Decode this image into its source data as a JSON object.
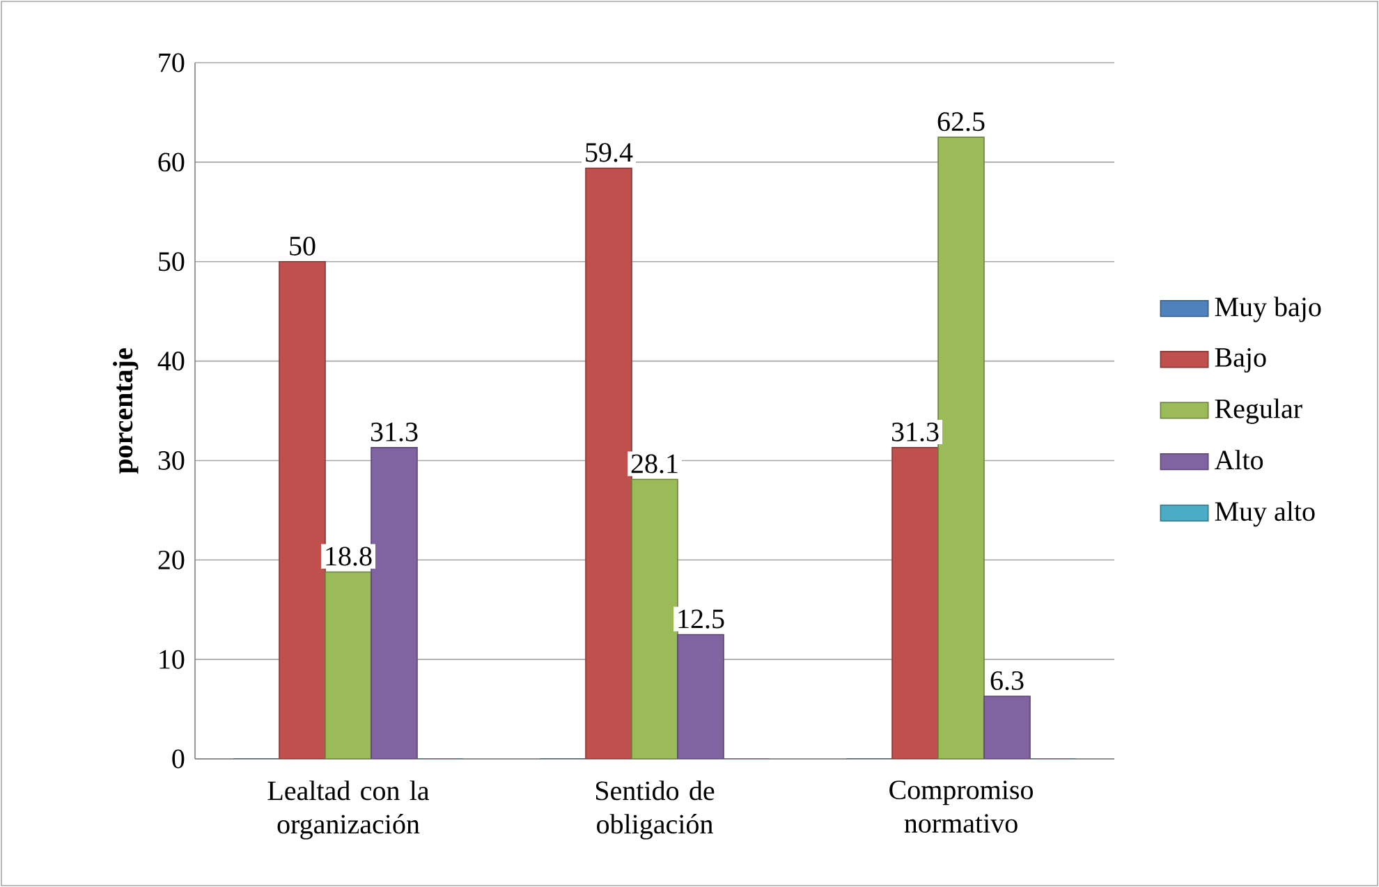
{
  "chart_data": {
    "type": "bar",
    "ylabel": "porcentaje",
    "categories": [
      "Lealtad  con  la organización",
      "Sentido de obligación",
      "Compromiso normativo"
    ],
    "series": [
      {
        "name": "Muy bajo",
        "color": "#4f81bd",
        "values": [
          0,
          0,
          0
        ],
        "value_labels": [
          null,
          null,
          null
        ]
      },
      {
        "name": "Bajo",
        "color": "#c0504d",
        "values": [
          50,
          59.4,
          31.3
        ],
        "value_labels": [
          "50",
          "59.4",
          "31.3"
        ]
      },
      {
        "name": "Regular",
        "color": "#9bbb59",
        "values": [
          18.8,
          28.1,
          62.5
        ],
        "value_labels": [
          "18.8",
          "28.1",
          "62.5"
        ]
      },
      {
        "name": "Alto",
        "color": "#8064a2",
        "values": [
          31.3,
          12.5,
          6.3
        ],
        "value_labels": [
          "31.3",
          "12.5",
          "6.3"
        ]
      },
      {
        "name": "Muy alto",
        "color": "#4bacc6",
        "values": [
          0,
          0,
          0
        ],
        "value_labels": [
          null,
          null,
          null
        ]
      }
    ],
    "ylim": [
      0,
      70
    ],
    "yticks": [
      0,
      10,
      20,
      30,
      40,
      50,
      60,
      70
    ],
    "grid": "y",
    "legend": "right"
  }
}
